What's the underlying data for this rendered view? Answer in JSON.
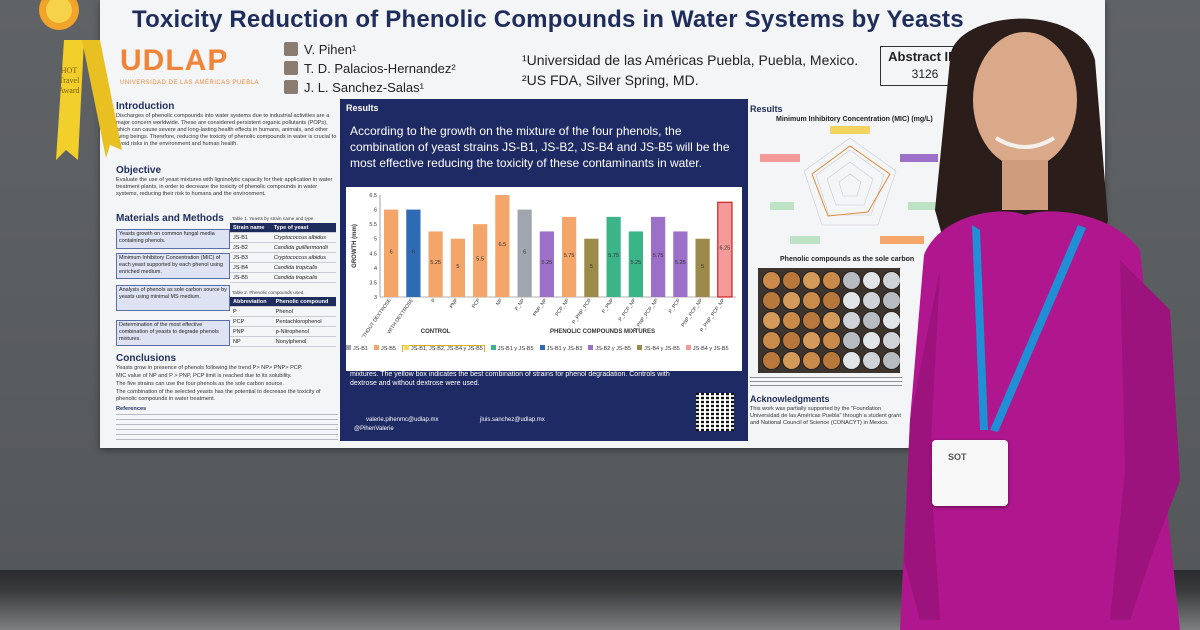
{
  "poster": {
    "title": "Toxicity Reduction of Phenolic Compounds in Water Systems by Yeasts",
    "logo": "UDLAP",
    "logo_sub": "UNIVERSIDAD DE LAS AMÉRICAS PUEBLA",
    "authors": [
      "V. Pihen¹",
      "T. D. Palacios-Hernandez²",
      "J. L. Sanchez-Salas¹"
    ],
    "affiliations": [
      "¹Universidad de las Américas Puebla, Puebla, Mexico.",
      "²US FDA, Silver Spring, MD."
    ],
    "abstract_label": "Abstract ID:",
    "abstract_id": "3126",
    "sections": {
      "introduction": "Introduction",
      "objective": "Objective",
      "methods": "Materials and Methods",
      "conclusions": "Conclusions",
      "results_left": "Results",
      "results_right": "Results",
      "acknowledgments": "Acknowledgments"
    },
    "intro_text": "Discharges of phenolic compounds into water systems due to industrial activities are a major concern worldwide. These are considered persistent organic pollutants (POPs), which can cause severe and long-lasting health effects in humans, animals, and other living beings. Therefore, reducing the toxicity of phenolic compounds in water is crucial to avoid risks in the environment and human health.",
    "objective_text": "Evaluate the use of yeast mixtures with ligninolytic capacity for their application in water treatment plants, in order to decrease the toxicity of phenolic compounds in water systems, reducing their risk to humans and the environment.",
    "methods_steps": [
      "Yeasts growth on common fungal media containing phenols.",
      "Minimum Inhibitory Concentration (MIC) of each yeast supported by each phenol using enriched medium.",
      "Analysis of phenols as sole carbon source by yeasts using minimal MS medium.",
      "Determination of the most effective combination of yeasts to degrade phenols mixtures."
    ],
    "table1": {
      "caption": "Table 1. Yeasts by strain name and type.",
      "headers": [
        "Strain name",
        "Type of yeast"
      ],
      "rows": [
        [
          "JS-B1",
          "Cryptococcus albidus"
        ],
        [
          "JS-B2",
          "Candida guilliermondii"
        ],
        [
          "JS-B3",
          "Cryptococcus albidus"
        ],
        [
          "JS-B4",
          "Candida tropicalis"
        ],
        [
          "JS-B5",
          "Candida tropicalis"
        ]
      ]
    },
    "table2": {
      "caption": "Table 2. Phenolic compounds used.",
      "headers": [
        "Abbreviation",
        "Phenolic compound"
      ],
      "rows": [
        [
          "P",
          "Phenol"
        ],
        [
          "PCP",
          "Pentachlorophenol"
        ],
        [
          "PNP",
          "p-Nitrophenol"
        ],
        [
          "NP",
          "Nonylphenol"
        ]
      ]
    },
    "conclusions": [
      "Yeasts grow in presence of phenols following the trend P> NP> PNP> PCP.",
      "MIC value of NP and P > PNP, PCP limit is reached due to its solubility.",
      "The five strains can use the four phenols as the sole carbon source.",
      "The combination of the selected yeasts has the potential to decrease the toxicity of phenolic compounds in water treatment."
    ],
    "references_label": "References",
    "results_intro": "According to the growth on the mixture of the four phenols, the combination of yeast strains JS-B1, JS-B2, JS-B4 and JS-B5 will be the most effective reducing the toxicity of these contaminants in water.",
    "fig3_caption": "Figure 3. Growth of the best performing yeasts combinations on phenolic compounds, individually and in mixtures. The yellow box indicates the best combination of strains for phenol degradation. Controls with dextrose and without dextrose were used.",
    "emails": [
      "valerie.pihenmc@udlap.mx",
      "jluis.sanchez@udlap.mx"
    ],
    "twitter": "@PihenValerie",
    "radar_title": "Minimum Inhibitory Concentration (MIC) (mg/L)",
    "phenolic_title": "Phenolic compounds as the sole carbon",
    "ack_text": "This work was partially supported by the \"Foundation Universidad de las Américas Puebla\" through a student grant and National Council of Science (CONACYT) in Mexico.",
    "award_text": "HOT Travel Award",
    "badge_text": "SOT"
  },
  "chart_data": {
    "type": "bar",
    "ylabel": "GROWTH (mm)",
    "ylim": [
      3,
      6.5
    ],
    "yticks": [
      3,
      3.5,
      4,
      4.5,
      5,
      5.5,
      6,
      6.5
    ],
    "categories": [
      "WITHOUT DEXTROSE",
      "WITH DEXTROSE",
      "P",
      "PNP",
      "PCP",
      "NP",
      "P_NP",
      "PNP_NP",
      "PCP_NP",
      "P_PNP_PCP",
      "P_PNP",
      "P_PCP_NP",
      "P_PNP_PCP_NP",
      "P_PCP",
      "PNP_PCP_NP",
      "P_PNP_PCP_NP"
    ],
    "values": [
      6,
      6,
      5.25,
      5,
      5.5,
      6.5,
      6,
      5.25,
      5.75,
      5,
      5.75,
      5.25,
      5.75,
      5.25,
      5,
      6.25
    ],
    "colors": [
      "#f4a56a",
      "#2f6bb5",
      "#f4a56a",
      "#f4a56a",
      "#f4a56a",
      "#f4a56a",
      "#a0a6ad",
      "#9c6fc9",
      "#f4a56a",
      "#9c8a4a",
      "#3bb48a",
      "#3bb48a",
      "#9c6fc9",
      "#9c6fc9",
      "#9c8a4a",
      "#f49a9a"
    ],
    "data_labels": [
      "6",
      "6",
      "5.25",
      "5",
      "5.5",
      "6.5",
      "6",
      "5.25",
      "5.75",
      "5",
      "5.75",
      "5.25",
      "5.75",
      "5.25",
      "5",
      "6.25"
    ],
    "group_labels": [
      "CONTROL",
      "PHENOLIC COMPOUNDS MIXTURES"
    ],
    "highlight_index": 15,
    "legend": [
      "JS-B1",
      "JS-B5",
      "JS-B1, JS-B2, JS-B4 y JS-B5",
      "JS-B1 y JS-B5",
      "JS-B1 y JS-B3",
      "JS-B2 y JS-B5",
      "JS-B4 y JS-B5",
      "JS-B4 y JS-B5"
    ],
    "legend_colors": [
      "#a0a6ad",
      "#f4a56a",
      "#f4d35e",
      "#3bb48a",
      "#2f6bb5",
      "#9c6fc9",
      "#9c8a4a",
      "#f49a9a"
    ]
  }
}
